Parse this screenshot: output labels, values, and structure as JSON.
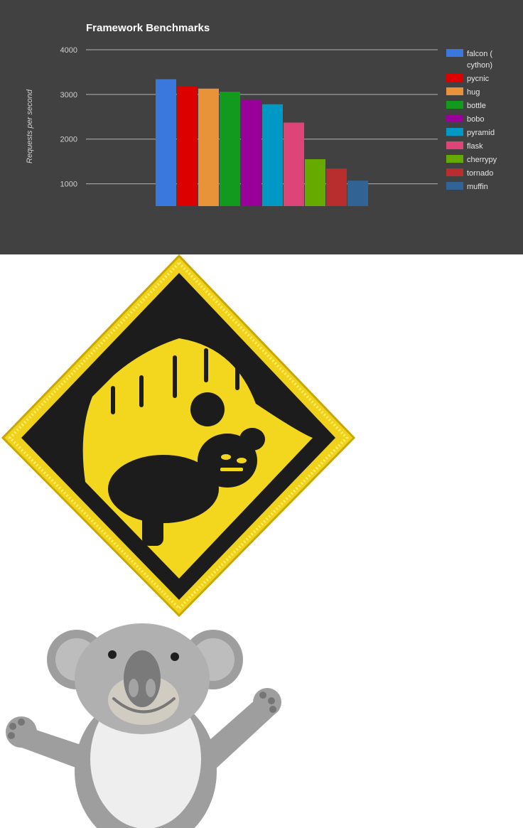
{
  "chart_data": {
    "type": "bar",
    "title": "Framework Benchmarks",
    "ylabel": "Requests per second",
    "xlabel": "",
    "ylim": [
      500,
      4000
    ],
    "yticks": [
      1000,
      2000,
      3000,
      4000
    ],
    "grid": true,
    "legend_position": "right",
    "categories": [
      "falcon ( cython)",
      "pycnic",
      "hug",
      "bottle",
      "bobo",
      "pyramid",
      "flask",
      "cherrypy",
      "tornado",
      "muffin"
    ],
    "values": [
      3340,
      3180,
      3130,
      3060,
      2880,
      2780,
      2370,
      1550,
      1340,
      1070
    ],
    "colors": [
      "#3b78dd",
      "#dc0000",
      "#e8923a",
      "#119a1e",
      "#990099",
      "#0099c6",
      "#dd4477",
      "#66aa00",
      "#b82e2e",
      "#316395"
    ]
  },
  "legend": {
    "first_line1": "falcon (",
    "first_line2": "cython)"
  },
  "images": {
    "patch": "yellow warning diamond patch with black koala",
    "koala": "grey cartoon koala mascot"
  }
}
